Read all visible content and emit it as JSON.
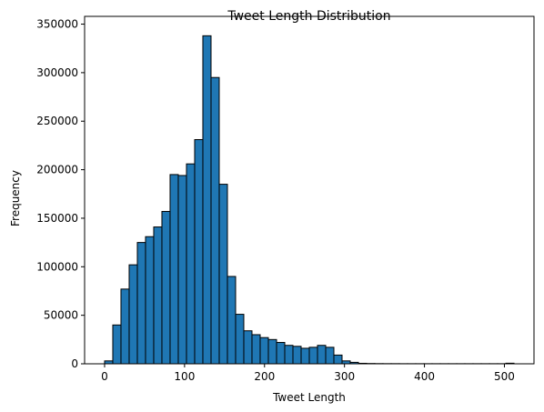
{
  "chart_data": {
    "type": "bar",
    "title": "Tweet Length Distribution",
    "xlabel": "Tweet Length",
    "ylabel": "Frequency",
    "xlim": [
      -25,
      537
    ],
    "ylim": [
      0,
      358000
    ],
    "x_ticks": [
      0,
      100,
      200,
      300,
      400,
      500
    ],
    "y_ticks": [
      0,
      50000,
      100000,
      150000,
      200000,
      250000,
      300000,
      350000
    ],
    "bin_width": 10.24,
    "bin_edges_start": 0,
    "values": [
      3000,
      40000,
      77000,
      102000,
      125000,
      131000,
      141000,
      157000,
      195000,
      194000,
      206000,
      231000,
      338000,
      295000,
      185000,
      90000,
      51000,
      34000,
      30000,
      27000,
      25000,
      22000,
      19000,
      18000,
      16000,
      17000,
      19000,
      17000,
      9000,
      3000,
      1500,
      500,
      300,
      200,
      150,
      150,
      100,
      100,
      100,
      100,
      100,
      100,
      100,
      100,
      100,
      100,
      100,
      100,
      100,
      600
    ],
    "bar_color": "#1f77b4",
    "edge_color": "#000000",
    "grid": false,
    "legend": "none"
  }
}
